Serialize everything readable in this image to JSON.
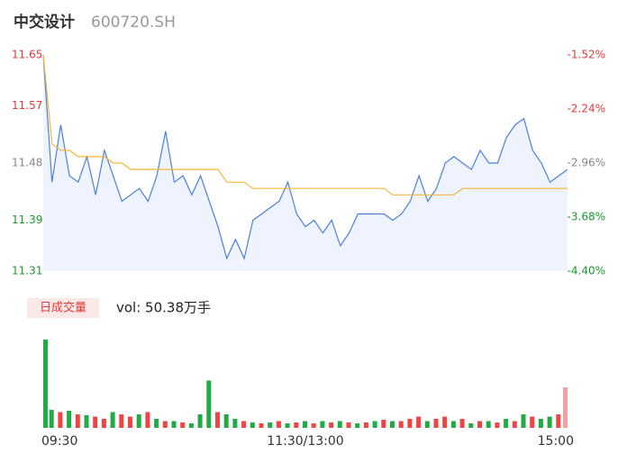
{
  "chart_data": [
    {
      "type": "line",
      "title": "中交设计",
      "subtitle": "600720.SH",
      "x": [
        0,
        4,
        8,
        12,
        16,
        20,
        24,
        28,
        32,
        36,
        40,
        44,
        48,
        52,
        56,
        60,
        64,
        68,
        72,
        76,
        80,
        84,
        88,
        92,
        96,
        100,
        104,
        108,
        112,
        116,
        120,
        124,
        128,
        132,
        136,
        140,
        144,
        148,
        152,
        156,
        160,
        164,
        168,
        172,
        176,
        180,
        184,
        188,
        192,
        196,
        200,
        204,
        208,
        212,
        216,
        220,
        224,
        228,
        232,
        236,
        240
      ],
      "xlim": [
        0,
        240
      ],
      "series": [
        {
          "color": "#4a7fe0",
          "values": [
            11.65,
            11.45,
            11.54,
            11.46,
            11.45,
            11.49,
            11.43,
            11.5,
            11.46,
            11.42,
            11.43,
            11.44,
            11.42,
            11.46,
            11.53,
            11.45,
            11.46,
            11.43,
            11.46,
            11.42,
            11.38,
            11.33,
            11.36,
            11.33,
            11.39,
            11.4,
            11.41,
            11.42,
            11.45,
            11.4,
            11.38,
            11.39,
            11.37,
            11.39,
            11.35,
            11.37,
            11.4,
            11.4,
            11.4,
            11.4,
            11.39,
            11.4,
            11.42,
            11.46,
            11.42,
            11.44,
            11.48,
            11.49,
            11.48,
            11.47,
            11.5,
            11.48,
            11.48,
            11.52,
            11.54,
            11.55,
            11.5,
            11.48,
            11.45,
            11.46,
            11.47
          ]
        },
        {
          "color": "#f5b53c",
          "values": [
            11.65,
            11.51,
            11.5,
            11.5,
            11.49,
            11.49,
            11.49,
            11.49,
            11.48,
            11.48,
            11.47,
            11.47,
            11.47,
            11.47,
            11.47,
            11.47,
            11.47,
            11.47,
            11.47,
            11.47,
            11.47,
            11.45,
            11.45,
            11.45,
            11.44,
            11.44,
            11.44,
            11.44,
            11.44,
            11.44,
            11.44,
            11.44,
            11.44,
            11.44,
            11.44,
            11.44,
            11.44,
            11.44,
            11.44,
            11.44,
            11.43,
            11.43,
            11.43,
            11.43,
            11.43,
            11.43,
            11.43,
            11.43,
            11.44,
            11.44,
            11.44,
            11.44,
            11.44,
            11.44,
            11.44,
            11.44,
            11.44,
            11.44,
            11.44,
            11.44,
            11.44
          ]
        }
      ],
      "ylim": [
        11.31,
        11.65
      ],
      "yticks": [
        11.31,
        11.39,
        11.48,
        11.57,
        11.65
      ],
      "ytick_colors": [
        "#1a9a2e",
        "#1a9a2e",
        "#888888",
        "#e03a3a",
        "#e03a3a"
      ],
      "y2lim": [
        -4.4,
        -1.52
      ],
      "y2ticks": [
        {
          "value": -4.4,
          "label": "-4.40%"
        },
        {
          "value": -3.68,
          "label": "-3.68%"
        },
        {
          "value": -2.96,
          "label": "-2.96%"
        },
        {
          "value": -2.24,
          "label": "-2.24%"
        },
        {
          "value": -1.52,
          "label": "-1.52%"
        }
      ],
      "area_color": "#eef3fd"
    },
    {
      "type": "bar",
      "title": "日成交量",
      "annotation": "vol: 50.38万手",
      "x": [
        0,
        4,
        8,
        12,
        16,
        20,
        24,
        28,
        32,
        36,
        40,
        44,
        48,
        52,
        56,
        60,
        64,
        68,
        72,
        76,
        80,
        84,
        88,
        92,
        96,
        100,
        104,
        108,
        112,
        116,
        120,
        124,
        128,
        132,
        136,
        140,
        144,
        148,
        152,
        156,
        160,
        164,
        168,
        172,
        176,
        180,
        184,
        188,
        192,
        196,
        200,
        204,
        208,
        212,
        216,
        220,
        224,
        228,
        232,
        236,
        240
      ],
      "xlim": [
        0,
        240
      ],
      "values": [
        1.96,
        0.4,
        0.35,
        0.38,
        0.3,
        0.28,
        0.25,
        0.2,
        0.35,
        0.3,
        0.25,
        0.3,
        0.35,
        0.2,
        0.15,
        0.15,
        0.12,
        0.1,
        0.3,
        1.05,
        0.35,
        0.3,
        0.2,
        0.15,
        0.12,
        0.1,
        0.12,
        0.15,
        0.1,
        0.12,
        0.15,
        0.1,
        0.15,
        0.12,
        0.15,
        0.12,
        0.1,
        0.12,
        0.15,
        0.18,
        0.15,
        0.15,
        0.2,
        0.25,
        0.15,
        0.2,
        0.25,
        0.15,
        0.2,
        0.1,
        0.15,
        0.15,
        0.12,
        0.2,
        0.15,
        0.3,
        0.25,
        0.2,
        0.25,
        0.3,
        0.9
      ],
      "colors": [
        "#2a4",
        "#2a4",
        "#e44",
        "#2a4",
        "#e44",
        "#2a4",
        "#e44",
        "#e44",
        "#2a4",
        "#e44",
        "#e44",
        "#2a4",
        "#e44",
        "#2a4",
        "#e44",
        "#2a4",
        "#e44",
        "#2a4",
        "#2a4",
        "#2a4",
        "#e44",
        "#2a4",
        "#2a4",
        "#e44",
        "#2a4",
        "#e44",
        "#2a4",
        "#e44",
        "#2a4",
        "#e44",
        "#2a4",
        "#e44",
        "#2a4",
        "#e44",
        "#2a4",
        "#e44",
        "#2a4",
        "#e44",
        "#2a4",
        "#e44",
        "#2a4",
        "#e44",
        "#e44",
        "#e44",
        "#2a4",
        "#e44",
        "#e44",
        "#2a4",
        "#e44",
        "#2a4",
        "#e44",
        "#2a4",
        "#e44",
        "#2a4",
        "#e44",
        "#2a4",
        "#e44",
        "#2a4",
        "#2a4",
        "#e44",
        "#f5a0a0"
      ],
      "ylim": [
        0,
        2
      ],
      "xticks": [
        {
          "value": 0,
          "label": "09:30"
        },
        {
          "value": 120,
          "label": "11:30/13:00"
        },
        {
          "value": 240,
          "label": "15:00"
        }
      ],
      "label_box_color": "#fde8e8"
    }
  ]
}
